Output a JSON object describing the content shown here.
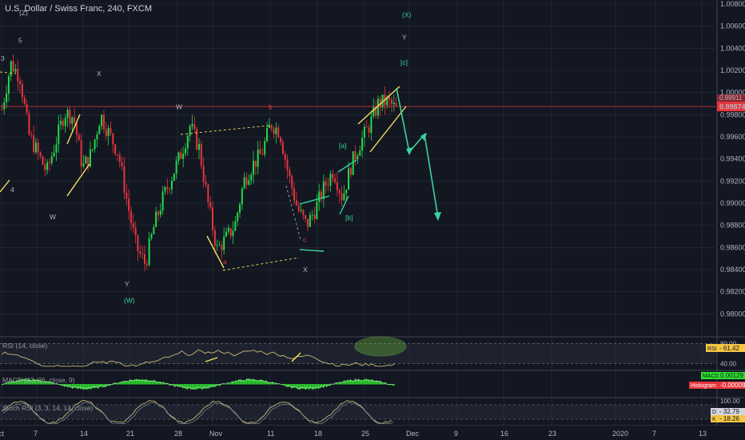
{
  "header": {
    "title": "U.S. Dollar / Swiss Franc, 240, FXCM"
  },
  "colors": {
    "up": "#26d94a",
    "down": "#e8353d",
    "bg": "#131722",
    "grid": "#2a2e39",
    "price_line": "#e8353d",
    "wave_yellow": "#f5e15a",
    "wave_green": "#3ad49a",
    "rsi": "#c9b97a",
    "macd_hist": "#2ee02e",
    "axis_text": "#b2b5be"
  },
  "chart_data": [
    {
      "type": "candlestick",
      "title": "U.S. Dollar / Swiss Franc, 240, FXCM",
      "ylim": [
        0.978,
        1.008
      ],
      "y_ticks": [
        "1.00800",
        "1.00600",
        "1.00400",
        "1.00200",
        "1.00000",
        "0.99800",
        "0.99600",
        "0.99400",
        "0.99200",
        "0.99000",
        "0.98800",
        "0.98600",
        "0.98400",
        "0.98200",
        "0.98000"
      ],
      "y_tick_values": [
        1.008,
        1.006,
        1.004,
        1.002,
        1.0,
        0.998,
        0.996,
        0.994,
        0.992,
        0.99,
        0.988,
        0.986,
        0.984,
        0.982,
        0.98
      ],
      "x_ticks": [
        "ct",
        "7",
        "14",
        "21",
        "28",
        "Nov",
        "11",
        "18",
        "25",
        "Dec",
        "9",
        "16",
        "23",
        "2020",
        "7",
        "13"
      ],
      "last_price": "0.99874",
      "last_price_value": 0.99874,
      "prev_tag": "0.99911",
      "close_path": [
        0.9985,
        1.0026,
        1.0015,
        0.9962,
        0.9945,
        0.9928,
        0.9955,
        0.9982,
        0.9978,
        0.9932,
        0.9945,
        0.998,
        0.9962,
        0.9945,
        0.99,
        0.986,
        0.9845,
        0.988,
        0.9905,
        0.9925,
        0.9945,
        0.997,
        0.995,
        0.99,
        0.9858,
        0.9868,
        0.988,
        0.992,
        0.9935,
        0.9945,
        0.9972,
        0.9965,
        0.9925,
        0.9895,
        0.988,
        0.9895,
        0.9915,
        0.993,
        0.9905,
        0.9935,
        0.9955,
        0.997,
        0.999,
        0.9992,
        0.9985
      ],
      "waves": [
        {
          "label": "(Z)",
          "value": 1.007,
          "color": "#b2b5be"
        },
        {
          "label": "3",
          "value": 1.003,
          "color": "#b2b5be"
        },
        {
          "label": "5",
          "value": 1.0045,
          "color": "#b2b5be"
        },
        {
          "label": "4",
          "value": 0.991,
          "color": "#b2b5be"
        },
        {
          "label": "W",
          "value": 0.99,
          "color": "#b2b5be"
        },
        {
          "label": "X",
          "value": 1.0015,
          "color": "#b2b5be"
        },
        {
          "label": "Y",
          "value": 0.9825,
          "color": "#b2b5be"
        },
        {
          "label": "(W)",
          "value": 0.981,
          "color": "#3ad49a"
        },
        {
          "label": "W",
          "value": 0.9985,
          "color": "#b2b5be"
        },
        {
          "label": "a",
          "value": 0.9845,
          "color": "#e8353d"
        },
        {
          "label": "b",
          "value": 0.9985,
          "color": "#e8353d"
        },
        {
          "label": "c",
          "value": 0.9865,
          "color": "#e8353d"
        },
        {
          "label": "X",
          "value": 0.9838,
          "color": "#b2b5be"
        },
        {
          "label": "[a]",
          "value": 0.995,
          "color": "#3ad49a"
        },
        {
          "label": "[b]",
          "value": 0.9885,
          "color": "#3ad49a"
        },
        {
          "label": "[c]",
          "value": 1.0025,
          "color": "#3ad49a"
        },
        {
          "label": "Y",
          "value": 1.0048,
          "color": "#b2b5be"
        },
        {
          "label": "(X)",
          "value": 1.0068,
          "color": "#3ad49a"
        }
      ]
    },
    {
      "type": "line",
      "name": "RSI (14, close)",
      "ylim": [
        30,
        90
      ],
      "y_ticks": [
        "80.00",
        "40.00"
      ],
      "y_tick_values": [
        80,
        40
      ],
      "badge_label": "RSI",
      "value": "61.42"
    },
    {
      "type": "histogram",
      "name": "MACD (12, 26, close, 9)",
      "badge_label": "MACD",
      "value": "0.00129",
      "hist_label": "Histogram",
      "hist_value": "-0.00009"
    },
    {
      "type": "line",
      "name": "Stoch RSI (3, 3, 14, 14, close)",
      "ylim": [
        0,
        100
      ],
      "y_ticks": [
        "100.00"
      ],
      "y_tick_values": [
        100
      ],
      "d_label": "D",
      "d_value": "32.79",
      "k_label": "K",
      "k_value": "18.26"
    }
  ]
}
